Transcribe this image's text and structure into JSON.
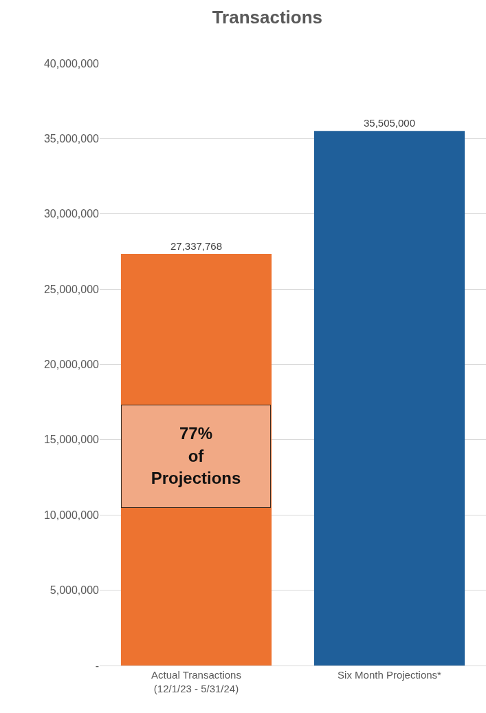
{
  "chart_data": {
    "type": "bar",
    "title": "Transactions",
    "categories": [
      "Actual Transactions\n(12/1/23 - 5/31/24)",
      "Six Month Projections*"
    ],
    "values": [
      27337768,
      35505000
    ],
    "colors": [
      "#ed7330",
      "#1f5f9a"
    ],
    "value_labels": [
      "27,337,768",
      "35,505,000"
    ],
    "ylim": [
      0,
      40000000
    ],
    "yticks": [
      {
        "value": 0,
        "label": "-"
      },
      {
        "value": 5000000,
        "label": "5,000,000"
      },
      {
        "value": 10000000,
        "label": "10,000,000"
      },
      {
        "value": 15000000,
        "label": "15,000,000"
      },
      {
        "value": 20000000,
        "label": "20,000,000"
      },
      {
        "value": 25000000,
        "label": "25,000,000"
      },
      {
        "value": 30000000,
        "label": "30,000,000"
      },
      {
        "value": 35000000,
        "label": "35,000,000"
      },
      {
        "value": 40000000,
        "label": "40,000,000"
      }
    ],
    "grid": "y",
    "annotations": [
      "77%\nof\nProjections"
    ]
  }
}
